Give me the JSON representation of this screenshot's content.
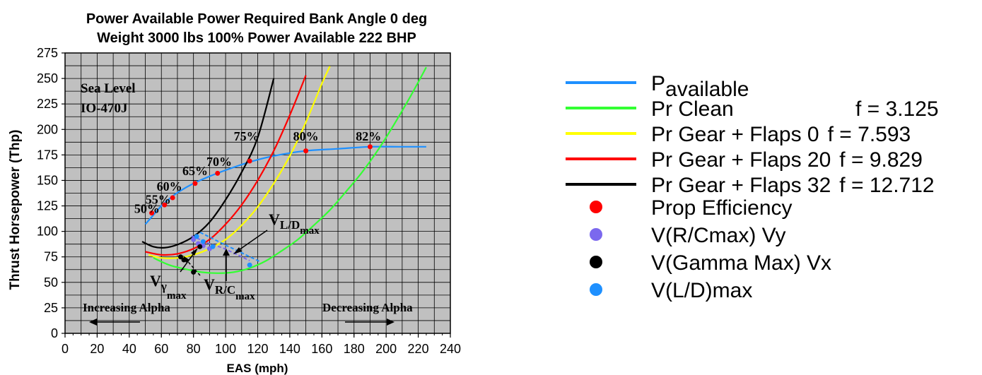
{
  "chart_data": {
    "type": "line",
    "title": "Power Available Power Required Bank Angle 0 deg",
    "subtitle": "Weight 3000 lbs 100% Power Available 222 BHP",
    "xlabel": "EAS (mph)",
    "ylabel": "Thrust Horsepower (Thp)",
    "xlim": [
      0,
      240
    ],
    "ylim": [
      0,
      275
    ],
    "x_ticks": [
      "0",
      "20",
      "40",
      "60",
      "80",
      "100",
      "120",
      "140",
      "160",
      "180",
      "200",
      "220",
      "240"
    ],
    "y_ticks": [
      "0",
      "25",
      "50",
      "75",
      "100",
      "125",
      "150",
      "175",
      "200",
      "225",
      "250",
      "275"
    ],
    "grid": true,
    "plot_background": "#c0c0c0",
    "inset_labels": [
      "Sea Level",
      "IO-470J"
    ],
    "series": [
      {
        "name": "Pavailable",
        "label_main": "P",
        "label_sub": "available",
        "f_label": "",
        "color": "#1e90ff",
        "x": [
          50,
          55,
          60,
          65,
          70,
          80,
          90,
          100,
          115,
          130,
          150,
          170,
          190,
          210,
          225
        ],
        "y": [
          107,
          116,
          125,
          132,
          138,
          147,
          154,
          160,
          168,
          174,
          179,
          181,
          183,
          183,
          183
        ]
      },
      {
        "name": "Pr Clean",
        "label_main": "Pr Clean",
        "label_sub": "",
        "f_label": "f = 3.125",
        "color": "#33ff33",
        "x": [
          55,
          65,
          75,
          85,
          95,
          105,
          115,
          125,
          135,
          145,
          155,
          165,
          175,
          185,
          195,
          205,
          215,
          225
        ],
        "y": [
          74,
          67,
          63,
          60,
          59,
          60,
          64,
          71,
          81,
          92,
          106,
          121,
          139,
          158,
          180,
          205,
          232,
          261
        ]
      },
      {
        "name": "Pr Gear + Flaps 0",
        "label_main": "Pr Gear + Flaps 0",
        "label_sub": "",
        "f_label": "f = 7.593",
        "color": "#ffff00",
        "x": [
          52,
          60,
          70,
          80,
          90,
          100,
          110,
          120,
          130,
          140,
          150,
          160,
          165
        ],
        "y": [
          77,
          74,
          74,
          77,
          83,
          92,
          106,
          124,
          147,
          174,
          207,
          245,
          262
        ]
      },
      {
        "name": "Pr Gear + Flaps 20",
        "label_main": "Pr Gear + Flaps 20",
        "label_sub": "",
        "f_label": "f = 9.829",
        "color": "#ff0000",
        "x": [
          50,
          60,
          70,
          80,
          90,
          100,
          110,
          120,
          130,
          140,
          150
        ],
        "y": [
          80,
          77,
          78,
          83,
          92,
          107,
          126,
          150,
          179,
          214,
          253
        ]
      },
      {
        "name": "Pr Gear + Flaps 32",
        "label_main": "Pr Gear + Flaps 32",
        "label_sub": "",
        "f_label": "f = 12.712",
        "color": "#000000",
        "x": [
          48,
          55,
          62,
          70,
          80,
          90,
          100,
          110,
          120,
          130
        ],
        "y": [
          90,
          85,
          84,
          87,
          95,
          109,
          131,
          158,
          192,
          250
        ]
      }
    ],
    "markers": [
      {
        "name": "Prop Efficiency",
        "color": "#ff0000",
        "x": [
          54,
          62,
          67,
          81,
          95,
          115,
          150,
          190
        ],
        "y": [
          118,
          126,
          133,
          147,
          157,
          169,
          179,
          183
        ]
      },
      {
        "name": "V(R/Cmax) Vy",
        "color": "#7b68ee",
        "x": [
          80,
          83,
          86,
          90
        ],
        "y": [
          92,
          88,
          86,
          83
        ]
      },
      {
        "name": "V(Gamma Max) Vx",
        "color": "#000000",
        "x": [
          72,
          74,
          80,
          84
        ],
        "y": [
          75,
          72,
          60,
          85
        ]
      },
      {
        "name": "V(L/D)max",
        "color": "#1e90ff",
        "x": [
          82,
          86,
          92,
          115
        ],
        "y": [
          95,
          90,
          85,
          67
        ]
      }
    ],
    "percent_labels": [
      {
        "text": "50%",
        "x": 51,
        "y": 118
      },
      {
        "text": "55%",
        "x": 58,
        "y": 127
      },
      {
        "text": "60%",
        "x": 65,
        "y": 140
      },
      {
        "text": "65%",
        "x": 81,
        "y": 155
      },
      {
        "text": "70%",
        "x": 96,
        "y": 164
      },
      {
        "text": "75%",
        "x": 113,
        "y": 189
      },
      {
        "text": "80%",
        "x": 150,
        "y": 189
      },
      {
        "text": "82%",
        "x": 189,
        "y": 189
      }
    ],
    "annotations": {
      "vld_main": "V",
      "vld_sub": "L/D",
      "vld_subsub": "max",
      "vgamma_main": "V",
      "vgamma_sub": "γ",
      "vgamma_subsub": "max",
      "vrc_main": "V",
      "vrc_sub": "R/C",
      "vrc_subsub": "max",
      "increasing_alpha": "Increasing Alpha",
      "decreasing_alpha": "Decreasing Alpha"
    }
  }
}
